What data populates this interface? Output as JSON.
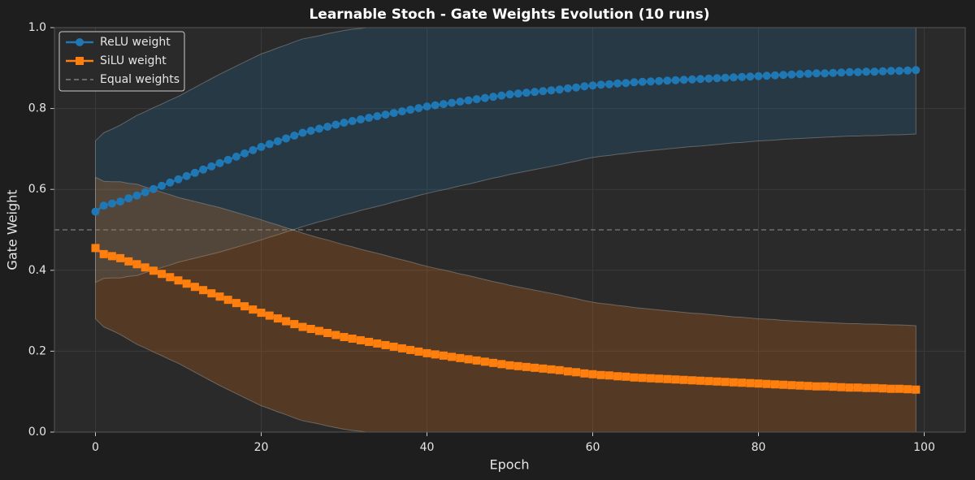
{
  "chart_data": {
    "type": "line",
    "title": "Learnable Stoch - Gate Weights Evolution (10 runs)",
    "xlabel": "Epoch",
    "ylabel": "Gate Weight",
    "x": [
      0,
      1,
      2,
      3,
      4,
      5,
      6,
      7,
      8,
      9,
      10,
      11,
      12,
      13,
      14,
      15,
      16,
      17,
      18,
      19,
      20,
      21,
      22,
      23,
      24,
      25,
      26,
      27,
      28,
      29,
      30,
      31,
      32,
      33,
      34,
      35,
      36,
      37,
      38,
      39,
      40,
      41,
      42,
      43,
      44,
      45,
      46,
      47,
      48,
      49,
      50,
      51,
      52,
      53,
      54,
      55,
      56,
      57,
      58,
      59,
      60,
      61,
      62,
      63,
      64,
      65,
      66,
      67,
      68,
      69,
      70,
      71,
      72,
      73,
      74,
      75,
      76,
      77,
      78,
      79,
      80,
      81,
      82,
      83,
      84,
      85,
      86,
      87,
      88,
      89,
      90,
      91,
      92,
      93,
      94,
      95,
      96,
      97,
      98,
      99
    ],
    "series": [
      {
        "name": "ReLU weight",
        "color": "#1f77b4",
        "marker": "circle",
        "values": [
          0.545,
          0.56,
          0.565,
          0.57,
          0.578,
          0.585,
          0.593,
          0.601,
          0.609,
          0.617,
          0.625,
          0.633,
          0.641,
          0.649,
          0.657,
          0.665,
          0.673,
          0.681,
          0.689,
          0.697,
          0.705,
          0.712,
          0.719,
          0.726,
          0.733,
          0.74,
          0.745,
          0.75,
          0.755,
          0.76,
          0.765,
          0.769,
          0.773,
          0.777,
          0.781,
          0.785,
          0.789,
          0.793,
          0.797,
          0.801,
          0.805,
          0.808,
          0.811,
          0.814,
          0.817,
          0.82,
          0.823,
          0.826,
          0.829,
          0.832,
          0.835,
          0.837,
          0.839,
          0.841,
          0.843,
          0.845,
          0.847,
          0.85,
          0.852,
          0.855,
          0.857,
          0.859,
          0.86,
          0.862,
          0.863,
          0.865,
          0.866,
          0.867,
          0.868,
          0.869,
          0.87,
          0.871,
          0.872,
          0.873,
          0.874,
          0.875,
          0.876,
          0.877,
          0.878,
          0.879,
          0.88,
          0.881,
          0.882,
          0.883,
          0.884,
          0.885,
          0.886,
          0.887,
          0.887,
          0.888,
          0.889,
          0.89,
          0.89,
          0.891,
          0.891,
          0.892,
          0.893,
          0.893,
          0.894,
          0.895
        ],
        "std": [
          0.175,
          0.18,
          0.184,
          0.189,
          0.193,
          0.198,
          0.199,
          0.201,
          0.202,
          0.204,
          0.205,
          0.208,
          0.211,
          0.214,
          0.217,
          0.22,
          0.222,
          0.224,
          0.226,
          0.228,
          0.23,
          0.23,
          0.231,
          0.231,
          0.232,
          0.232,
          0.231,
          0.23,
          0.23,
          0.229,
          0.228,
          0.227,
          0.225,
          0.224,
          0.223,
          0.222,
          0.22,
          0.219,
          0.218,
          0.216,
          0.215,
          0.213,
          0.212,
          0.21,
          0.208,
          0.207,
          0.205,
          0.203,
          0.201,
          0.2,
          0.198,
          0.196,
          0.194,
          0.192,
          0.19,
          0.188,
          0.186,
          0.184,
          0.182,
          0.18,
          0.178,
          0.177,
          0.176,
          0.175,
          0.174,
          0.173,
          0.172,
          0.171,
          0.17,
          0.169,
          0.168,
          0.167,
          0.166,
          0.166,
          0.165,
          0.164,
          0.163,
          0.162,
          0.162,
          0.161,
          0.16,
          0.16,
          0.16,
          0.159,
          0.159,
          0.159,
          0.159,
          0.159,
          0.158,
          0.158,
          0.158,
          0.158,
          0.158,
          0.158,
          0.158,
          0.158,
          0.158,
          0.158,
          0.158,
          0.158
        ]
      },
      {
        "name": "SiLU weight",
        "color": "#ff7f0e",
        "marker": "square",
        "values": [
          0.455,
          0.44,
          0.435,
          0.43,
          0.422,
          0.415,
          0.407,
          0.399,
          0.391,
          0.383,
          0.375,
          0.367,
          0.359,
          0.351,
          0.343,
          0.335,
          0.327,
          0.319,
          0.311,
          0.303,
          0.295,
          0.288,
          0.281,
          0.274,
          0.267,
          0.26,
          0.255,
          0.25,
          0.245,
          0.24,
          0.235,
          0.231,
          0.227,
          0.223,
          0.219,
          0.215,
          0.211,
          0.207,
          0.203,
          0.199,
          0.195,
          0.192,
          0.189,
          0.186,
          0.183,
          0.18,
          0.177,
          0.174,
          0.171,
          0.168,
          0.165,
          0.163,
          0.161,
          0.159,
          0.157,
          0.155,
          0.153,
          0.15,
          0.148,
          0.145,
          0.143,
          0.141,
          0.14,
          0.138,
          0.137,
          0.135,
          0.134,
          0.133,
          0.132,
          0.131,
          0.13,
          0.129,
          0.128,
          0.127,
          0.126,
          0.125,
          0.124,
          0.123,
          0.122,
          0.121,
          0.12,
          0.119,
          0.118,
          0.117,
          0.116,
          0.115,
          0.114,
          0.113,
          0.113,
          0.112,
          0.111,
          0.11,
          0.11,
          0.109,
          0.109,
          0.108,
          0.107,
          0.107,
          0.106,
          0.105
        ],
        "std": [
          0.175,
          0.18,
          0.184,
          0.189,
          0.193,
          0.198,
          0.199,
          0.201,
          0.202,
          0.204,
          0.205,
          0.208,
          0.211,
          0.214,
          0.217,
          0.22,
          0.222,
          0.224,
          0.226,
          0.228,
          0.23,
          0.23,
          0.231,
          0.231,
          0.232,
          0.232,
          0.231,
          0.23,
          0.23,
          0.229,
          0.228,
          0.227,
          0.225,
          0.224,
          0.223,
          0.222,
          0.22,
          0.219,
          0.218,
          0.216,
          0.215,
          0.213,
          0.212,
          0.21,
          0.208,
          0.207,
          0.205,
          0.203,
          0.201,
          0.2,
          0.198,
          0.196,
          0.194,
          0.192,
          0.19,
          0.188,
          0.186,
          0.184,
          0.182,
          0.18,
          0.178,
          0.177,
          0.176,
          0.175,
          0.174,
          0.173,
          0.172,
          0.171,
          0.17,
          0.169,
          0.168,
          0.167,
          0.166,
          0.166,
          0.165,
          0.164,
          0.163,
          0.162,
          0.162,
          0.161,
          0.16,
          0.16,
          0.16,
          0.159,
          0.159,
          0.159,
          0.159,
          0.159,
          0.158,
          0.158,
          0.158,
          0.158,
          0.158,
          0.158,
          0.158,
          0.158,
          0.158,
          0.158,
          0.158,
          0.158
        ]
      }
    ],
    "reference_lines": [
      {
        "name": "Equal weights",
        "y": 0.5,
        "color": "#808080"
      }
    ],
    "xlim": [
      -4.95,
      104.95
    ],
    "ylim": [
      0,
      1
    ],
    "xticks": [
      0,
      20,
      40,
      60,
      80,
      100
    ],
    "yticks": [
      {
        "value": 0,
        "label": "0.0"
      },
      {
        "value": 0.2,
        "label": "0.2"
      },
      {
        "value": 0.4,
        "label": "0.4"
      },
      {
        "value": 0.6,
        "label": "0.6"
      },
      {
        "value": 0.8,
        "label": "0.8"
      },
      {
        "value": 1,
        "label": "1.0"
      }
    ],
    "grid": true,
    "legend": "upper left"
  }
}
